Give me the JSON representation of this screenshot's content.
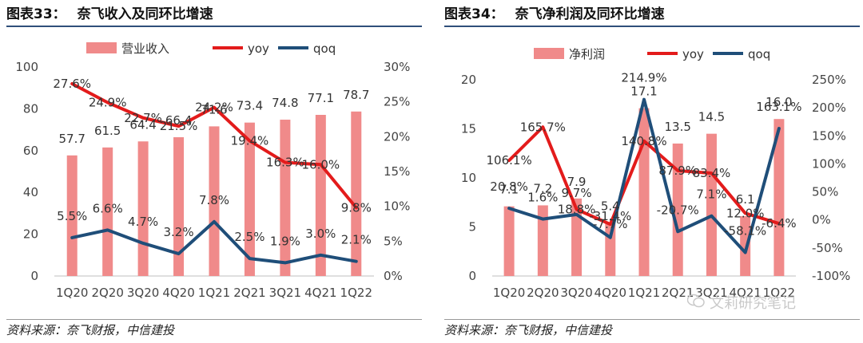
{
  "chart_data": [
    {
      "type": "bar",
      "title_num": "图表33：",
      "title": "奈飞收入及同环比增速",
      "categories": [
        "1Q20",
        "2Q20",
        "3Q20",
        "4Q20",
        "1Q21",
        "2Q21",
        "3Q21",
        "4Q21",
        "1Q22"
      ],
      "series": [
        {
          "name": "营业收入",
          "kind": "bar",
          "axis": "left",
          "values": [
            57.7,
            61.5,
            64.4,
            66.4,
            71.6,
            73.4,
            74.8,
            77.1,
            78.7
          ],
          "labels": [
            "57.7",
            "61.5",
            "64.4",
            "66.4",
            "71.6",
            "73.4",
            "74.8",
            "77.1",
            "78.7"
          ]
        },
        {
          "name": "yoy",
          "kind": "line",
          "axis": "right",
          "values": [
            27.6,
            24.9,
            22.7,
            21.5,
            24.2,
            19.4,
            16.3,
            16.0,
            9.8
          ],
          "labels": [
            "27.6%",
            "24.9%",
            "22.7%",
            "21.5%",
            "24.2%",
            "19.4%",
            "16.3%",
            "16.0%",
            "9.8%"
          ]
        },
        {
          "name": "qoq",
          "kind": "line",
          "axis": "right",
          "values": [
            5.5,
            6.6,
            4.7,
            3.2,
            7.8,
            2.5,
            1.9,
            3.0,
            2.1
          ],
          "labels": [
            "5.5%",
            "6.6%",
            "4.7%",
            "3.2%",
            "7.8%",
            "2.5%",
            "1.9%",
            "3.0%",
            "2.1%"
          ]
        }
      ],
      "left_axis": {
        "ylim": [
          0,
          100
        ],
        "ticks": [
          "0",
          "20",
          "40",
          "60",
          "80",
          "100"
        ]
      },
      "right_axis": {
        "ylim": [
          0,
          30
        ],
        "ticks": [
          "0%",
          "5%",
          "10%",
          "15%",
          "20%",
          "25%",
          "30%"
        ]
      },
      "legend_position": "top"
    },
    {
      "type": "bar",
      "title_num": "图表34：",
      "title": "奈飞净利润及同环比增速",
      "categories": [
        "1Q20",
        "2Q20",
        "3Q20",
        "4Q20",
        "1Q21",
        "2Q21",
        "3Q21",
        "4Q21",
        "1Q22"
      ],
      "series": [
        {
          "name": "净利润",
          "kind": "bar",
          "axis": "left",
          "values": [
            7.1,
            7.2,
            7.9,
            5.4,
            17.1,
            13.5,
            14.5,
            6.1,
            16.0
          ],
          "labels": [
            "7.1",
            "7.2",
            "7.9",
            "5.4",
            "17.1",
            "13.5",
            "14.5",
            "6.1",
            "16.0"
          ]
        },
        {
          "name": "yoy",
          "kind": "line",
          "axis": "right",
          "values": [
            106.1,
            165.7,
            18.8,
            -7.7,
            140.8,
            87.9,
            83.4,
            12.0,
            -6.4
          ],
          "labels": [
            "106.1%",
            "165.7%",
            "18.8%",
            "-7.7%",
            "140.8%",
            "87.9%",
            "83.4%",
            "12.0%",
            "-6.4%"
          ]
        },
        {
          "name": "qoq",
          "kind": "line",
          "axis": "right",
          "values": [
            20.8,
            1.6,
            9.7,
            -31.4,
            214.9,
            -20.7,
            7.1,
            -58.1,
            163.1
          ],
          "labels": [
            "20.8%",
            "1.6%",
            "9.7%",
            "-31.4%",
            "214.9%",
            "-20.7%",
            "7.1%",
            "-58.1%",
            "163.1%"
          ]
        }
      ],
      "left_axis": {
        "ylim": [
          0,
          20
        ],
        "ticks": [
          "0",
          "5",
          "10",
          "15",
          "20"
        ]
      },
      "right_axis": {
        "ylim": [
          -100,
          250
        ],
        "ticks": [
          "-100%",
          "-50%",
          "0%",
          "50%",
          "100%",
          "150%",
          "200%",
          "250%"
        ]
      },
      "legend_position": "top"
    }
  ],
  "colors": {
    "bar": "#f08a8a",
    "yoy": "#e31b1b",
    "qoq": "#1f4e79",
    "axis": "#bfbfbf",
    "title_rule": "#2f4f7a"
  },
  "sources": [
    "资料来源：奈飞财报，中信建投",
    "资料来源：奈飞财报，中信建投"
  ],
  "watermark": {
    "icon": "wechat-icon",
    "text": "文莉研究笔记"
  }
}
